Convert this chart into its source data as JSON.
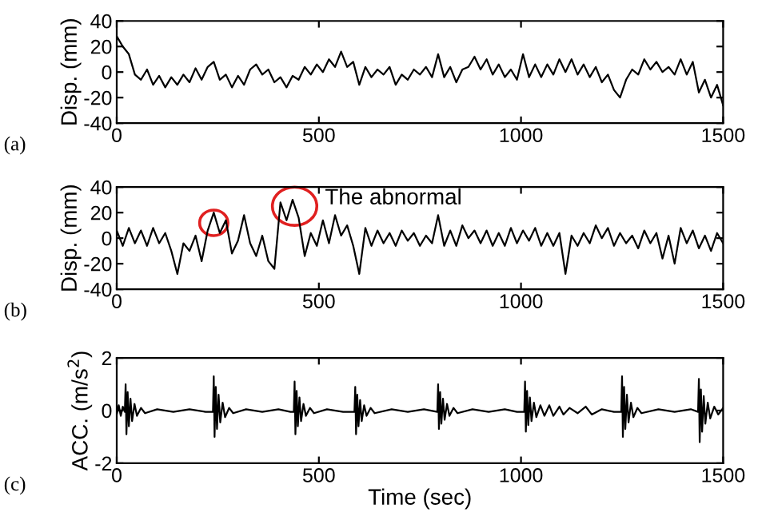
{
  "chart_data": [
    {
      "type": "line",
      "ylabel": "Disp. (mm)",
      "xlim": [
        0,
        1500
      ],
      "xticks": [
        0,
        500,
        1000,
        1500
      ],
      "ylim": [
        -40,
        40
      ],
      "yticks": [
        -40,
        -20,
        0,
        20,
        40
      ],
      "grid": false,
      "annotations": [
        "(a)"
      ],
      "series": [
        {
          "color": "#000000",
          "x": [
            0,
            15,
            30,
            45,
            60,
            75,
            90,
            105,
            120,
            135,
            150,
            165,
            180,
            195,
            210,
            225,
            240,
            255,
            270,
            285,
            300,
            315,
            330,
            345,
            360,
            375,
            390,
            405,
            420,
            435,
            450,
            465,
            480,
            495,
            510,
            525,
            540,
            555,
            570,
            585,
            600,
            615,
            630,
            645,
            660,
            675,
            690,
            705,
            720,
            735,
            750,
            765,
            780,
            795,
            810,
            825,
            840,
            855,
            870,
            885,
            900,
            915,
            930,
            945,
            960,
            975,
            990,
            1005,
            1020,
            1035,
            1050,
            1065,
            1080,
            1095,
            1110,
            1125,
            1140,
            1155,
            1170,
            1185,
            1200,
            1215,
            1230,
            1245,
            1260,
            1275,
            1290,
            1305,
            1320,
            1335,
            1350,
            1365,
            1380,
            1395,
            1410,
            1425,
            1440,
            1455,
            1470,
            1485,
            1500
          ],
          "values": [
            28,
            20,
            14,
            -2,
            -6,
            2,
            -10,
            -3,
            -12,
            -4,
            -10,
            -2,
            -8,
            3,
            -6,
            4,
            8,
            -6,
            -2,
            -12,
            -3,
            -10,
            2,
            6,
            -2,
            2,
            -8,
            -4,
            -12,
            -3,
            -6,
            4,
            -2,
            6,
            0,
            10,
            4,
            16,
            4,
            8,
            -10,
            4,
            -4,
            2,
            -2,
            4,
            -10,
            -2,
            -6,
            2,
            -2,
            4,
            -4,
            14,
            -4,
            4,
            -8,
            2,
            4,
            12,
            2,
            10,
            -2,
            6,
            -4,
            2,
            -6,
            14,
            -4,
            6,
            -4,
            6,
            -2,
            10,
            0,
            10,
            -2,
            6,
            -4,
            4,
            -8,
            -2,
            -14,
            -20,
            -6,
            2,
            -2,
            10,
            2,
            8,
            0,
            4,
            -2,
            10,
            -2,
            8,
            -16,
            -6,
            -20,
            -10,
            -26
          ]
        }
      ]
    },
    {
      "type": "line",
      "ylabel": "Disp. (mm)",
      "xlim": [
        0,
        1500
      ],
      "xticks": [
        0,
        500,
        1000,
        1500
      ],
      "ylim": [
        -40,
        40
      ],
      "yticks": [
        -40,
        -20,
        0,
        20,
        40
      ],
      "grid": false,
      "annotations": [
        "(b)",
        {
          "text": "The abnormal",
          "x": 440,
          "y": 25
        }
      ],
      "series": [
        {
          "color": "#000000",
          "x": [
            0,
            15,
            30,
            45,
            60,
            75,
            90,
            105,
            120,
            135,
            150,
            165,
            180,
            195,
            210,
            225,
            240,
            255,
            270,
            285,
            300,
            315,
            330,
            345,
            360,
            375,
            390,
            405,
            420,
            435,
            450,
            465,
            480,
            495,
            510,
            525,
            540,
            555,
            570,
            585,
            600,
            615,
            630,
            645,
            660,
            675,
            690,
            705,
            720,
            735,
            750,
            765,
            780,
            795,
            810,
            825,
            840,
            855,
            870,
            885,
            900,
            915,
            930,
            945,
            960,
            975,
            990,
            1005,
            1020,
            1035,
            1050,
            1065,
            1080,
            1095,
            1110,
            1125,
            1140,
            1155,
            1170,
            1185,
            1200,
            1215,
            1230,
            1245,
            1260,
            1275,
            1290,
            1305,
            1320,
            1335,
            1350,
            1365,
            1380,
            1395,
            1410,
            1425,
            1440,
            1455,
            1470,
            1485,
            1500
          ],
          "values": [
            6,
            -6,
            8,
            -4,
            6,
            -6,
            8,
            -4,
            4,
            -10,
            -28,
            -4,
            -10,
            2,
            -18,
            6,
            20,
            4,
            14,
            -12,
            -2,
            18,
            -4,
            -14,
            2,
            -18,
            -24,
            28,
            14,
            30,
            16,
            -14,
            4,
            -6,
            14,
            -4,
            18,
            2,
            10,
            -6,
            -28,
            8,
            -6,
            6,
            -4,
            4,
            -6,
            6,
            -2,
            4,
            -6,
            2,
            -4,
            18,
            -6,
            6,
            -6,
            10,
            0,
            6,
            -4,
            6,
            -6,
            4,
            -6,
            8,
            -4,
            6,
            -2,
            8,
            -6,
            4,
            -6,
            4,
            -28,
            2,
            -6,
            4,
            -4,
            10,
            0,
            8,
            -6,
            4,
            -4,
            2,
            -8,
            6,
            -4,
            4,
            -16,
            2,
            -20,
            8,
            -4,
            6,
            -8,
            2,
            -10,
            4,
            -4
          ]
        }
      ]
    },
    {
      "type": "line",
      "ylabel": "ACC. (m/s$^{2}$)",
      "xlabel": "Time (sec)",
      "xlim": [
        0,
        1500
      ],
      "xticks": [
        0,
        500,
        1000,
        1500
      ],
      "ylim": [
        -2,
        2
      ],
      "yticks": [
        -2,
        0,
        2
      ],
      "grid": false,
      "annotations": [
        "(c)"
      ],
      "series": [
        {
          "color": "#000000",
          "x": [
            0,
            5,
            10,
            15,
            20,
            22,
            24,
            27,
            30,
            34,
            38,
            44,
            50,
            60,
            70,
            100,
            140,
            180,
            220,
            238,
            240,
            242,
            245,
            248,
            252,
            256,
            262,
            268,
            278,
            288,
            320,
            360,
            400,
            430,
            438,
            440,
            442,
            445,
            448,
            452,
            456,
            462,
            468,
            478,
            488,
            520,
            560,
            588,
            590,
            592,
            595,
            598,
            602,
            606,
            612,
            618,
            628,
            638,
            680,
            720,
            760,
            793,
            795,
            797,
            800,
            803,
            807,
            811,
            817,
            823,
            833,
            843,
            880,
            920,
            960,
            990,
            1008,
            1010,
            1012,
            1015,
            1018,
            1022,
            1026,
            1032,
            1038,
            1048,
            1058,
            1070,
            1080,
            1095,
            1105,
            1120,
            1140,
            1160,
            1175,
            1200,
            1230,
            1248,
            1250,
            1252,
            1255,
            1258,
            1262,
            1266,
            1272,
            1278,
            1288,
            1298,
            1340,
            1380,
            1420,
            1438,
            1440,
            1442,
            1445,
            1448,
            1452,
            1456,
            1462,
            1468,
            1478,
            1488,
            1500
          ],
          "values": [
            -0.15,
            0.2,
            -0.2,
            0.15,
            -0.05,
            1.0,
            -0.9,
            0.7,
            -0.6,
            0.45,
            -0.4,
            0.25,
            -0.2,
            0.1,
            -0.1,
            0.05,
            -0.05,
            0.05,
            -0.05,
            -0.05,
            1.3,
            -1.0,
            0.9,
            -0.7,
            0.6,
            -0.45,
            0.3,
            -0.25,
            0.1,
            -0.1,
            0.05,
            -0.05,
            0.05,
            -0.05,
            -0.05,
            1.1,
            -0.9,
            0.75,
            -0.6,
            0.5,
            -0.4,
            0.25,
            -0.2,
            0.1,
            -0.1,
            0.05,
            -0.05,
            -0.05,
            0.9,
            -0.9,
            0.6,
            -0.6,
            0.4,
            -0.4,
            0.2,
            -0.2,
            0.1,
            -0.1,
            0.05,
            -0.05,
            0.05,
            -0.05,
            1.0,
            -0.7,
            0.7,
            -0.5,
            0.45,
            -0.35,
            0.25,
            -0.2,
            0.1,
            -0.1,
            0.05,
            -0.05,
            0.05,
            -0.05,
            -0.05,
            1.1,
            -0.8,
            0.75,
            -0.55,
            0.5,
            -0.4,
            0.3,
            -0.25,
            0.2,
            -0.2,
            0.2,
            -0.2,
            0.15,
            -0.15,
            0.1,
            -0.1,
            0.15,
            -0.15,
            0.05,
            -0.05,
            -0.05,
            1.3,
            -1.0,
            0.9,
            -0.7,
            0.6,
            -0.45,
            0.3,
            -0.25,
            0.1,
            -0.1,
            0.05,
            -0.05,
            0.05,
            -0.05,
            1.2,
            -1.2,
            0.8,
            -0.8,
            0.55,
            -0.5,
            0.3,
            -0.3,
            0.15,
            -0.15,
            0.1
          ]
        }
      ]
    }
  ]
}
